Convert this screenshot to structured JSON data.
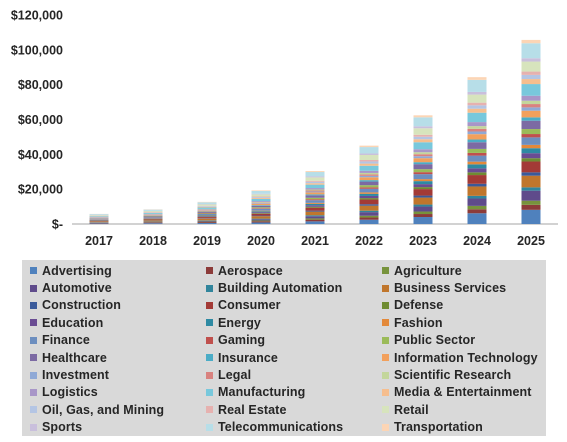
{
  "chart_data": {
    "type": "bar",
    "stacked": true,
    "categories": [
      "2017",
      "2018",
      "2019",
      "2020",
      "2021",
      "2022",
      "2023",
      "2024",
      "2025"
    ],
    "totals": [
      5800,
      8400,
      12700,
      19300,
      30400,
      45000,
      62400,
      84300,
      105700
    ],
    "ylim": [
      0,
      120000
    ],
    "yticks": [
      0,
      20000,
      40000,
      60000,
      80000,
      100000,
      120000
    ],
    "ytick_labels": [
      "$-",
      "$20,000",
      "$40,000",
      "$60,000",
      "$80,000",
      "$100,000",
      "$120,000"
    ],
    "legend_position": "bottom",
    "series": [
      {
        "name": "Advertising",
        "color": "#4f81bd",
        "shares": [
          0.07,
          0.06,
          0.05,
          0.05,
          0.055,
          0.06,
          0.07,
          0.08,
          0.085
        ]
      },
      {
        "name": "Aerospace",
        "color": "#8c3b39",
        "shares": [
          0.06,
          0.05,
          0.045,
          0.04,
          0.035,
          0.03,
          0.03,
          0.03,
          0.03
        ]
      },
      {
        "name": "Agriculture",
        "color": "#77933c",
        "shares": [
          0.025,
          0.025,
          0.025,
          0.025,
          0.025,
          0.025,
          0.025,
          0.025,
          0.025
        ]
      },
      {
        "name": "Automotive",
        "color": "#5f4b8b",
        "shares": [
          0.035,
          0.035,
          0.04,
          0.04,
          0.045,
          0.05,
          0.05,
          0.055,
          0.06
        ]
      },
      {
        "name": "Building Automation",
        "color": "#31859c",
        "shares": [
          0.02,
          0.02,
          0.02,
          0.02,
          0.02,
          0.02,
          0.02,
          0.02,
          0.02
        ]
      },
      {
        "name": "Business Services",
        "color": "#c0762c",
        "shares": [
          0.09,
          0.09,
          0.085,
          0.08,
          0.075,
          0.07,
          0.07,
          0.07,
          0.07
        ]
      },
      {
        "name": "Construction",
        "color": "#3a5a9a",
        "shares": [
          0.02,
          0.02,
          0.02,
          0.02,
          0.02,
          0.02,
          0.02,
          0.02,
          0.02
        ]
      },
      {
        "name": "Consumer",
        "color": "#a33a36",
        "shares": [
          0.06,
          0.06,
          0.06,
          0.06,
          0.06,
          0.065,
          0.065,
          0.065,
          0.065
        ]
      },
      {
        "name": "Defense",
        "color": "#6f8c32",
        "shares": [
          0.02,
          0.02,
          0.02,
          0.02,
          0.02,
          0.02,
          0.02,
          0.02,
          0.02
        ]
      },
      {
        "name": "Education",
        "color": "#6a4c93",
        "shares": [
          0.03,
          0.03,
          0.03,
          0.03,
          0.03,
          0.03,
          0.03,
          0.03,
          0.03
        ]
      },
      {
        "name": "Energy",
        "color": "#2e8aa3",
        "shares": [
          0.03,
          0.03,
          0.03,
          0.03,
          0.03,
          0.03,
          0.03,
          0.03,
          0.03
        ]
      },
      {
        "name": "Fashion",
        "color": "#e3893a",
        "shares": [
          0.02,
          0.02,
          0.02,
          0.02,
          0.02,
          0.02,
          0.02,
          0.02,
          0.02
        ]
      },
      {
        "name": "Finance",
        "color": "#6c8ebf",
        "shares": [
          0.06,
          0.06,
          0.06,
          0.06,
          0.055,
          0.05,
          0.05,
          0.045,
          0.045
        ]
      },
      {
        "name": "Gaming",
        "color": "#c0504d",
        "shares": [
          0.02,
          0.02,
          0.02,
          0.02,
          0.02,
          0.02,
          0.02,
          0.02,
          0.02
        ]
      },
      {
        "name": "Public Sector",
        "color": "#9bbb59",
        "shares": [
          0.03,
          0.03,
          0.03,
          0.03,
          0.03,
          0.03,
          0.03,
          0.03,
          0.03
        ]
      },
      {
        "name": "Healthcare",
        "color": "#7c6aa3",
        "shares": [
          0.05,
          0.05,
          0.05,
          0.05,
          0.05,
          0.05,
          0.05,
          0.05,
          0.05
        ]
      },
      {
        "name": "Insurance",
        "color": "#4bacc6",
        "shares": [
          0.02,
          0.02,
          0.02,
          0.02,
          0.02,
          0.02,
          0.02,
          0.02,
          0.02
        ]
      },
      {
        "name": "Information Technology",
        "color": "#f2a05c",
        "shares": [
          0.04,
          0.04,
          0.04,
          0.04,
          0.04,
          0.04,
          0.04,
          0.04,
          0.04
        ]
      },
      {
        "name": "Investment",
        "color": "#8fa9d6",
        "shares": [
          0.02,
          0.02,
          0.02,
          0.02,
          0.02,
          0.02,
          0.02,
          0.02,
          0.02
        ]
      },
      {
        "name": "Legal",
        "color": "#d9827f",
        "shares": [
          0.02,
          0.02,
          0.02,
          0.02,
          0.02,
          0.02,
          0.02,
          0.02,
          0.02
        ]
      },
      {
        "name": "Scientific Research",
        "color": "#c3d69b",
        "shares": [
          0.02,
          0.02,
          0.02,
          0.02,
          0.02,
          0.02,
          0.02,
          0.02,
          0.02
        ]
      },
      {
        "name": "Logistics",
        "color": "#a896c8",
        "shares": [
          0.03,
          0.03,
          0.03,
          0.03,
          0.03,
          0.03,
          0.03,
          0.03,
          0.03
        ]
      },
      {
        "name": "Manufacturing",
        "color": "#78c8dc",
        "shares": [
          0.07,
          0.07,
          0.07,
          0.07,
          0.07,
          0.07,
          0.07,
          0.07,
          0.07
        ]
      },
      {
        "name": "Media & Entertainment",
        "color": "#f6be8e",
        "shares": [
          0.03,
          0.03,
          0.03,
          0.03,
          0.03,
          0.03,
          0.03,
          0.03,
          0.03
        ]
      },
      {
        "name": "Oil, Gas, and Mining",
        "color": "#b4c5e4",
        "shares": [
          0.03,
          0.03,
          0.03,
          0.03,
          0.03,
          0.03,
          0.025,
          0.025,
          0.025
        ]
      },
      {
        "name": "Real Estate",
        "color": "#e6b1af",
        "shares": [
          0.02,
          0.02,
          0.02,
          0.02,
          0.02,
          0.02,
          0.02,
          0.02,
          0.02
        ]
      },
      {
        "name": "Retail",
        "color": "#d7e4bd",
        "shares": [
          0.07,
          0.07,
          0.07,
          0.07,
          0.07,
          0.07,
          0.065,
          0.06,
          0.06
        ]
      },
      {
        "name": "Sports",
        "color": "#c9bfdc",
        "shares": [
          0.02,
          0.02,
          0.02,
          0.02,
          0.02,
          0.02,
          0.02,
          0.02,
          0.02
        ]
      },
      {
        "name": "Telecommunications",
        "color": "#b7dee8",
        "shares": [
          0.09,
          0.09,
          0.09,
          0.09,
          0.09,
          0.09,
          0.09,
          0.09,
          0.09
        ]
      },
      {
        "name": "Transportation",
        "color": "#fcd5b5",
        "shares": [
          0.02,
          0.02,
          0.02,
          0.02,
          0.02,
          0.02,
          0.02,
          0.02,
          0.02
        ]
      }
    ]
  }
}
